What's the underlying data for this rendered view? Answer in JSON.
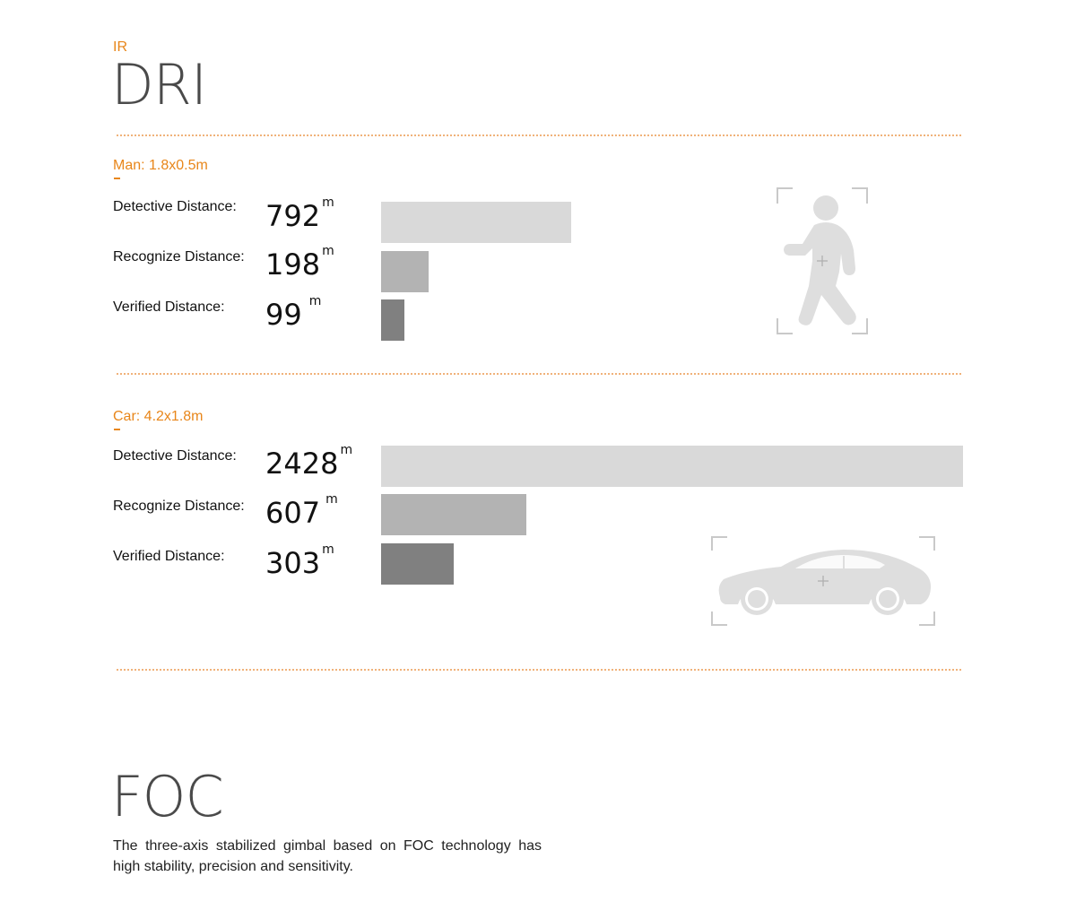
{
  "header": {
    "eyebrow": "IR",
    "title": "DRI"
  },
  "colors": {
    "accent": "#e8861a",
    "bar_detective": "#d9d9d9",
    "bar_recognize": "#b3b3b3",
    "bar_verified": "#808080"
  },
  "chart_data": [
    {
      "type": "bar",
      "orientation": "horizontal",
      "title": "Man: 1.8x0.5m",
      "unit": "m",
      "categories": [
        "Detective Distance:",
        "Recognize Distance:",
        "Verified Distance:"
      ],
      "values": [
        792,
        198,
        99
      ],
      "icon": "walking-person-icon"
    },
    {
      "type": "bar",
      "orientation": "horizontal",
      "title": "Car: 4.2x1.8m",
      "unit": "m",
      "categories": [
        "Detective Distance:",
        "Recognize Distance:",
        "Verified Distance:"
      ],
      "values": [
        2428,
        607,
        303
      ],
      "icon": "car-icon"
    }
  ],
  "foc": {
    "title": "FOC",
    "description": "The three-axis stabilized gimbal based on FOC technology has high stability, precision and sensitivity."
  }
}
